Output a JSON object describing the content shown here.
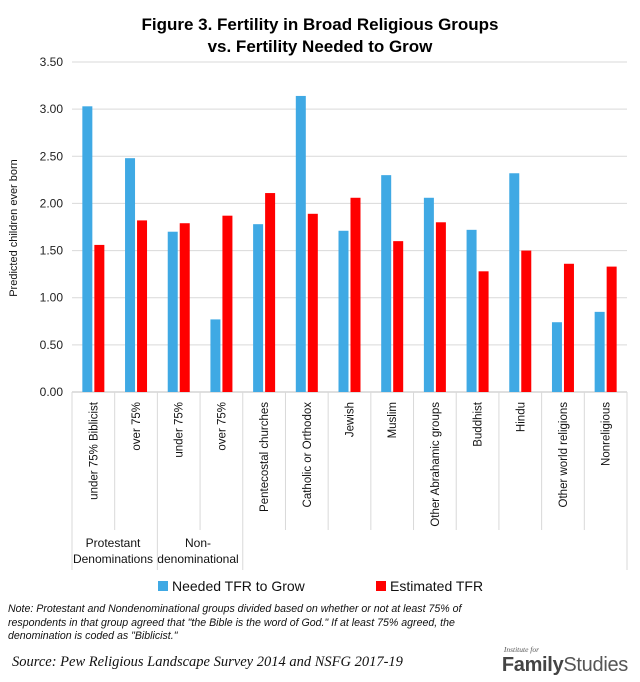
{
  "chart_data": {
    "type": "bar",
    "title_line1": "Figure 3. Fertility in Broad Religious Groups",
    "title_line2": "vs. Fertility Needed to Grow",
    "ylabel": "Predicted children ever born",
    "ylim": [
      0,
      3.5
    ],
    "yticks": [
      "0.00",
      "0.50",
      "1.00",
      "1.50",
      "2.00",
      "2.50",
      "3.00",
      "3.50"
    ],
    "categories": [
      "under 75% Biblicist",
      "over 75%",
      "under 75%",
      "over 75%",
      "Pentecostal churches",
      "Catholic or Orthodox",
      "Jewish",
      "Muslim",
      "Other Abrahamic groups",
      "Buddhist",
      "Hindu",
      "Other world religions",
      "Nonreligious"
    ],
    "groups": [
      {
        "label_line1": "Protestant",
        "label_line2": "Denominations"
      },
      {
        "label_line1": "Non-",
        "label_line2": "denominational"
      }
    ],
    "series": [
      {
        "name": "Needed TFR to Grow",
        "color": "#3FA9E4",
        "values": [
          3.03,
          2.48,
          1.7,
          0.77,
          1.78,
          3.14,
          1.71,
          2.3,
          2.06,
          1.72,
          2.32,
          0.74,
          0.85
        ]
      },
      {
        "name": "Estimated TFR",
        "color": "#FF0000",
        "values": [
          1.56,
          1.82,
          1.79,
          1.87,
          2.11,
          1.89,
          2.06,
          1.6,
          1.8,
          1.28,
          1.5,
          1.36,
          1.33
        ]
      }
    ],
    "grid": true,
    "legend_position": "bottom"
  },
  "note": "Note: Protestant and Nondenominational groups divided based on whether or not at least 75% of respondents in that group agreed that \"the Bible is the word of God.\" If at least 75% agreed, the denomination is coded  as \"Biblicist.\"",
  "source": "Source: Pew Religious Landscape Survey 2014 and NSFG 2017-19",
  "logo": {
    "small": "Institute for",
    "part1": "Family",
    "part2": "Studies"
  }
}
